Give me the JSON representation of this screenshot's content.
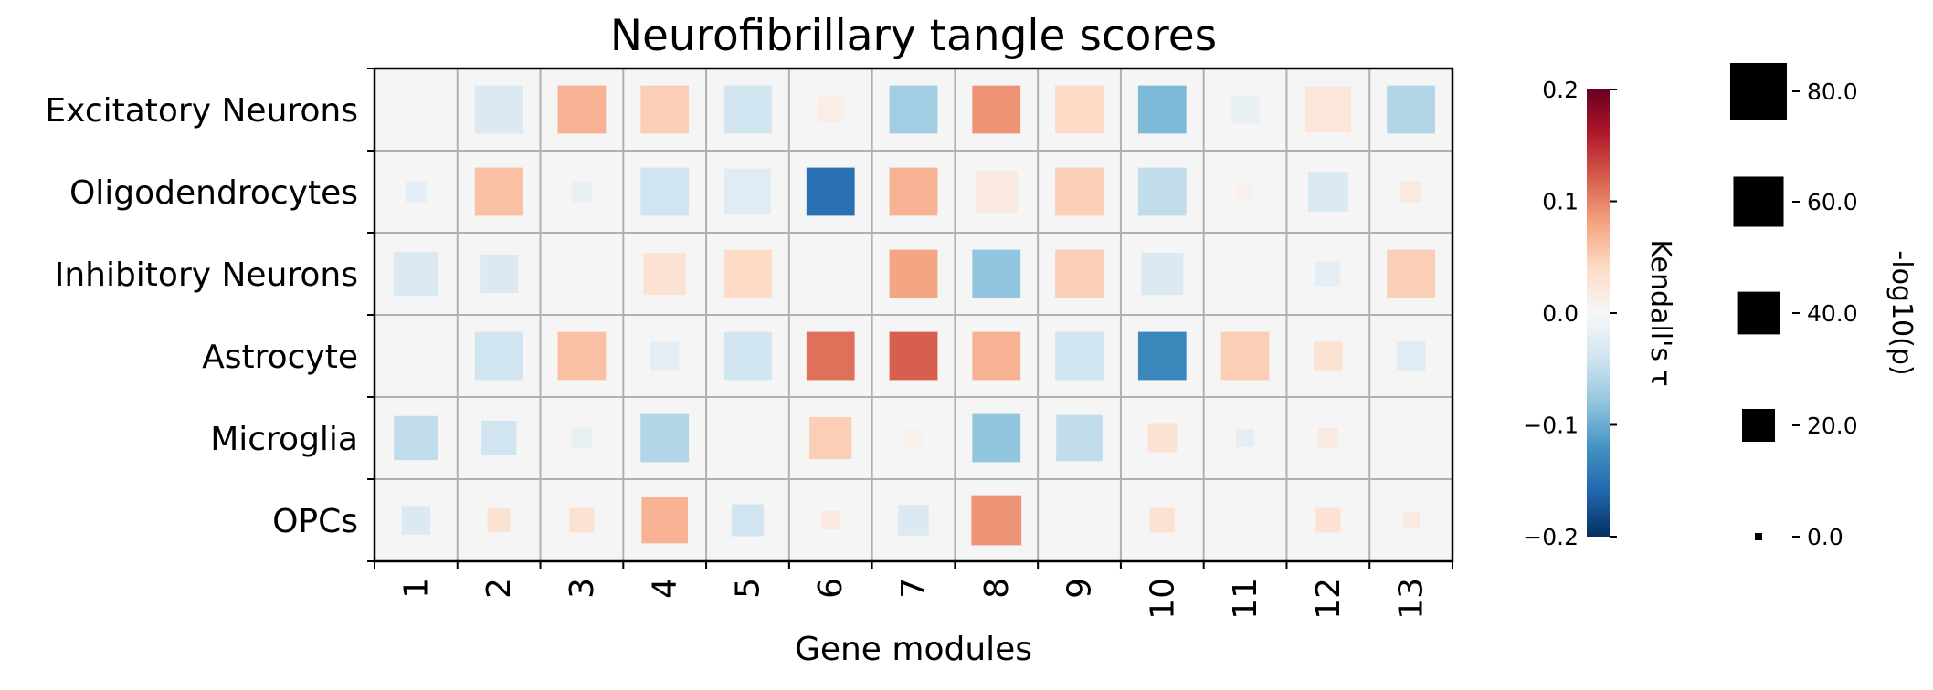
{
  "chart_data": {
    "type": "heatmap",
    "title": "Neurofibrillary tangle scores",
    "xlabel": "Gene modules",
    "ylabel": "",
    "categories_x": [
      "1",
      "2",
      "3",
      "4",
      "5",
      "6",
      "7",
      "8",
      "9",
      "10",
      "11",
      "12",
      "13"
    ],
    "categories_y": [
      "Excitatory Neurons",
      "Oligodendrocytes",
      "Inhibitory Neurons",
      "Astrocyte",
      "Microglia",
      "OPCs"
    ],
    "colorbar": {
      "label": "Kendall's τ",
      "range": [
        -0.2,
        0.2
      ],
      "ticks": [
        0.2,
        0.1,
        0.0,
        -0.1,
        -0.2
      ],
      "tick_labels": [
        "0.2",
        "0.1",
        "0.0",
        "−0.1",
        "−0.2"
      ],
      "colormap": "RdBu_r"
    },
    "size_legend": {
      "label": "-log10(p)",
      "values": [
        80,
        60,
        40,
        20,
        0
      ],
      "tick_labels": [
        "80.0",
        "60.0",
        "40.0",
        "20.0",
        "0.0"
      ]
    },
    "grid": true,
    "cells": [
      {
        "row": 0,
        "values": [
          {
            "x": "1",
            "tau": 0.0,
            "logp": 0
          },
          {
            "x": "2",
            "tau": -0.03,
            "logp": 55
          },
          {
            "x": "3",
            "tau": 0.07,
            "logp": 55
          },
          {
            "x": "4",
            "tau": 0.05,
            "logp": 55
          },
          {
            "x": "5",
            "tau": -0.04,
            "logp": 55
          },
          {
            "x": "6",
            "tau": 0.015,
            "logp": 12
          },
          {
            "x": "7",
            "tau": -0.07,
            "logp": 55
          },
          {
            "x": "8",
            "tau": 0.09,
            "logp": 55
          },
          {
            "x": "9",
            "tau": 0.04,
            "logp": 55
          },
          {
            "x": "10",
            "tau": -0.09,
            "logp": 55
          },
          {
            "x": "11",
            "tau": -0.015,
            "logp": 15
          },
          {
            "x": "12",
            "tau": 0.025,
            "logp": 50
          },
          {
            "x": "13",
            "tau": -0.06,
            "logp": 55
          }
        ]
      },
      {
        "row": 1,
        "values": [
          {
            "x": "1",
            "tau": -0.02,
            "logp": 6
          },
          {
            "x": "2",
            "tau": 0.06,
            "logp": 55
          },
          {
            "x": "3",
            "tau": -0.015,
            "logp": 6
          },
          {
            "x": "4",
            "tau": -0.04,
            "logp": 55
          },
          {
            "x": "5",
            "tau": -0.025,
            "logp": 50
          },
          {
            "x": "6",
            "tau": -0.15,
            "logp": 55
          },
          {
            "x": "7",
            "tau": 0.07,
            "logp": 55
          },
          {
            "x": "8",
            "tau": 0.02,
            "logp": 40
          },
          {
            "x": "9",
            "tau": 0.05,
            "logp": 55
          },
          {
            "x": "10",
            "tau": -0.05,
            "logp": 55
          },
          {
            "x": "11",
            "tau": 0.01,
            "logp": 3
          },
          {
            "x": "12",
            "tau": -0.03,
            "logp": 35
          },
          {
            "x": "13",
            "tau": 0.02,
            "logp": 6
          }
        ]
      },
      {
        "row": 2,
        "values": [
          {
            "x": "1",
            "tau": -0.03,
            "logp": 45
          },
          {
            "x": "2",
            "tau": -0.03,
            "logp": 32
          },
          {
            "x": "3",
            "tau": -0.005,
            "logp": 1
          },
          {
            "x": "4",
            "tau": 0.03,
            "logp": 40
          },
          {
            "x": "5",
            "tau": 0.04,
            "logp": 55
          },
          {
            "x": "6",
            "tau": 0.0,
            "logp": 0
          },
          {
            "x": "7",
            "tau": 0.08,
            "logp": 55
          },
          {
            "x": "8",
            "tau": -0.08,
            "logp": 55
          },
          {
            "x": "9",
            "tau": 0.05,
            "logp": 55
          },
          {
            "x": "10",
            "tau": -0.03,
            "logp": 40
          },
          {
            "x": "11",
            "tau": 0.0,
            "logp": 0
          },
          {
            "x": "12",
            "tau": -0.02,
            "logp": 10
          },
          {
            "x": "13",
            "tau": 0.05,
            "logp": 55
          }
        ]
      },
      {
        "row": 3,
        "values": [
          {
            "x": "1",
            "tau": 0.0,
            "logp": 0
          },
          {
            "x": "2",
            "tau": -0.04,
            "logp": 55
          },
          {
            "x": "3",
            "tau": 0.06,
            "logp": 55
          },
          {
            "x": "4",
            "tau": -0.02,
            "logp": 15
          },
          {
            "x": "5",
            "tau": -0.04,
            "logp": 55
          },
          {
            "x": "6",
            "tau": 0.11,
            "logp": 55
          },
          {
            "x": "7",
            "tau": 0.12,
            "logp": 55
          },
          {
            "x": "8",
            "tau": 0.07,
            "logp": 55
          },
          {
            "x": "9",
            "tau": -0.04,
            "logp": 55
          },
          {
            "x": "10",
            "tau": -0.13,
            "logp": 55
          },
          {
            "x": "11",
            "tau": 0.05,
            "logp": 55
          },
          {
            "x": "12",
            "tau": 0.03,
            "logp": 15
          },
          {
            "x": "13",
            "tau": -0.025,
            "logp": 15
          }
        ]
      },
      {
        "row": 4,
        "values": [
          {
            "x": "1",
            "tau": -0.05,
            "logp": 45
          },
          {
            "x": "2",
            "tau": -0.04,
            "logp": 25
          },
          {
            "x": "3",
            "tau": -0.015,
            "logp": 6
          },
          {
            "x": "4",
            "tau": -0.06,
            "logp": 55
          },
          {
            "x": "5",
            "tau": 0.005,
            "logp": 1
          },
          {
            "x": "6",
            "tau": 0.05,
            "logp": 40
          },
          {
            "x": "7",
            "tau": 0.01,
            "logp": 3
          },
          {
            "x": "8",
            "tau": -0.08,
            "logp": 55
          },
          {
            "x": "9",
            "tau": -0.05,
            "logp": 50
          },
          {
            "x": "10",
            "tau": 0.03,
            "logp": 15
          },
          {
            "x": "11",
            "tau": -0.02,
            "logp": 4
          },
          {
            "x": "12",
            "tau": 0.02,
            "logp": 5
          },
          {
            "x": "13",
            "tau": 0.0,
            "logp": 0
          }
        ]
      },
      {
        "row": 5,
        "values": [
          {
            "x": "1",
            "tau": -0.03,
            "logp": 15
          },
          {
            "x": "2",
            "tau": 0.03,
            "logp": 8
          },
          {
            "x": "3",
            "tau": 0.03,
            "logp": 10
          },
          {
            "x": "4",
            "tau": 0.07,
            "logp": 50
          },
          {
            "x": "5",
            "tau": -0.04,
            "logp": 20
          },
          {
            "x": "6",
            "tau": 0.02,
            "logp": 4
          },
          {
            "x": "7",
            "tau": -0.03,
            "logp": 18
          },
          {
            "x": "8",
            "tau": 0.09,
            "logp": 60
          },
          {
            "x": "9",
            "tau": 0.0,
            "logp": 0
          },
          {
            "x": "10",
            "tau": 0.03,
            "logp": 10
          },
          {
            "x": "11",
            "tau": 0.0,
            "logp": 0
          },
          {
            "x": "12",
            "tau": 0.03,
            "logp": 10
          },
          {
            "x": "13",
            "tau": 0.02,
            "logp": 3
          }
        ]
      }
    ]
  }
}
